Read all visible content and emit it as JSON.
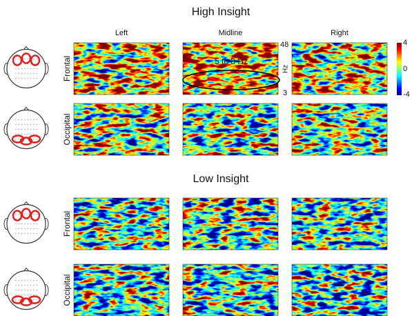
{
  "sections": [
    {
      "title": "High Insight",
      "rows": [
        "Frontal",
        "Occipital"
      ]
    },
    {
      "title": "Low Insight",
      "rows": [
        "Frontal",
        "Occipital"
      ]
    }
  ],
  "columns": [
    "Left",
    "Midline",
    "Right"
  ],
  "freq_axis": {
    "top": "48",
    "unit": "Hz",
    "bottom": "3"
  },
  "annotation": "5 to 8 Hz",
  "colorbar": {
    "top": "4",
    "mid": "0",
    "bottom": "-4"
  }
}
